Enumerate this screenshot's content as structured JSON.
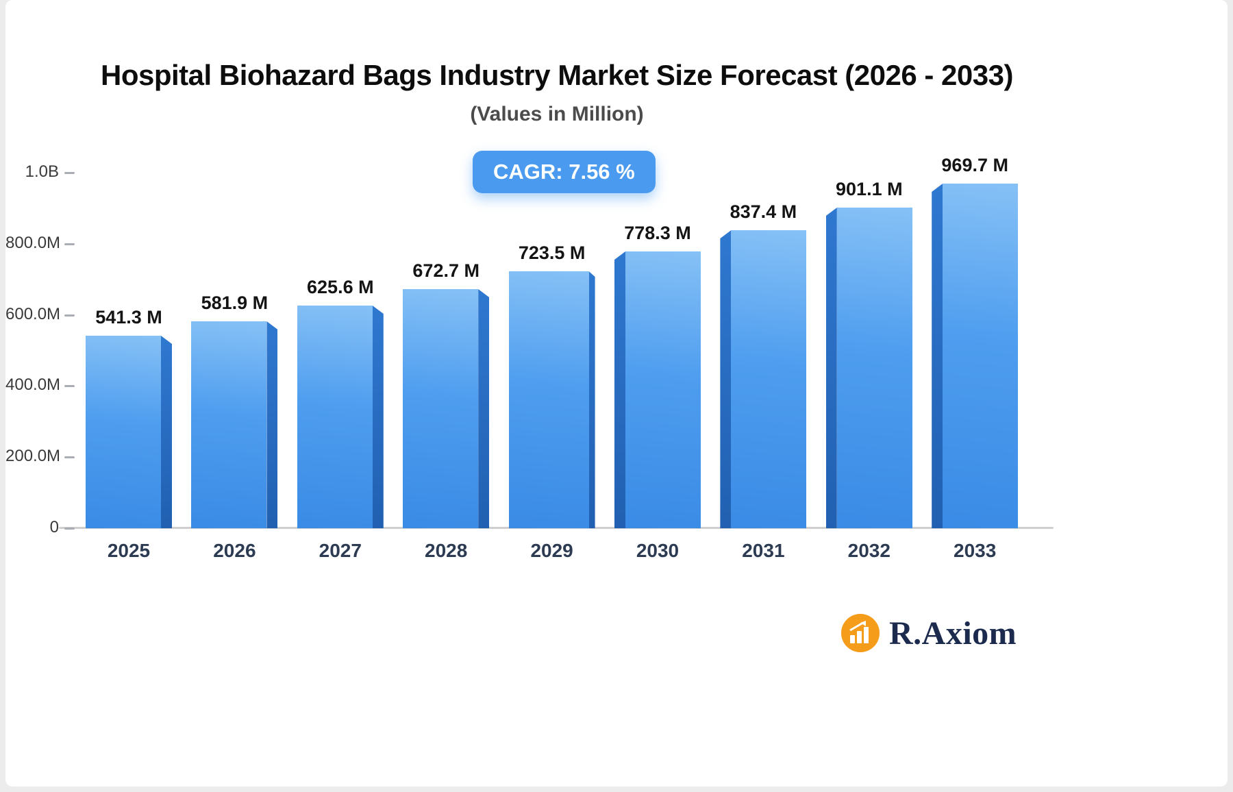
{
  "header": {
    "title": "Hospital Biohazard Bags Industry Market Size Forecast (2026 - 2033)",
    "subtitle": "(Values in Million)"
  },
  "badge": {
    "label": "CAGR: 7.56 %"
  },
  "logo": {
    "text": "R.Axiom",
    "icon": "bar-chart-growth-icon"
  },
  "colors": {
    "bar_main_top": "#86c1f6",
    "bar_main_bottom": "#3a8be5",
    "bar_side_dark": "#2160b1",
    "badge_bg": "#4a9bef",
    "logo_orange": "#f59c1b",
    "logo_text": "#1c2b4d",
    "axis_line": "#cfcfcf"
  },
  "chart_data": {
    "type": "bar",
    "title": "Hospital Biohazard Bags Industry Market Size Forecast (2026 - 2033)",
    "subtitle": "(Values in Million)",
    "categories": [
      "2025",
      "2026",
      "2027",
      "2028",
      "2029",
      "2030",
      "2031",
      "2032",
      "2033"
    ],
    "values": [
      541.3,
      581.9,
      625.6,
      672.7,
      723.5,
      778.3,
      837.4,
      901.1,
      969.7
    ],
    "value_labels": [
      "541.3 M",
      "581.9 M",
      "625.6 M",
      "672.7 M",
      "723.5 M",
      "778.3 M",
      "837.4 M",
      "901.1 M",
      "969.7 M"
    ],
    "unit": "Million",
    "cagr": "7.56 %",
    "ylim": [
      0,
      1000
    ],
    "y_ticks": [
      {
        "value": 0,
        "label": "0"
      },
      {
        "value": 200,
        "label": "200.0M"
      },
      {
        "value": 400,
        "label": "400.0M"
      },
      {
        "value": 600,
        "label": "600.0M"
      },
      {
        "value": 800,
        "label": "800.0M"
      },
      {
        "value": 1000,
        "label": "1.0B"
      }
    ],
    "grid": false,
    "legend": "none",
    "bar_style": "pseudo-3d, side faces toward outer edges"
  }
}
